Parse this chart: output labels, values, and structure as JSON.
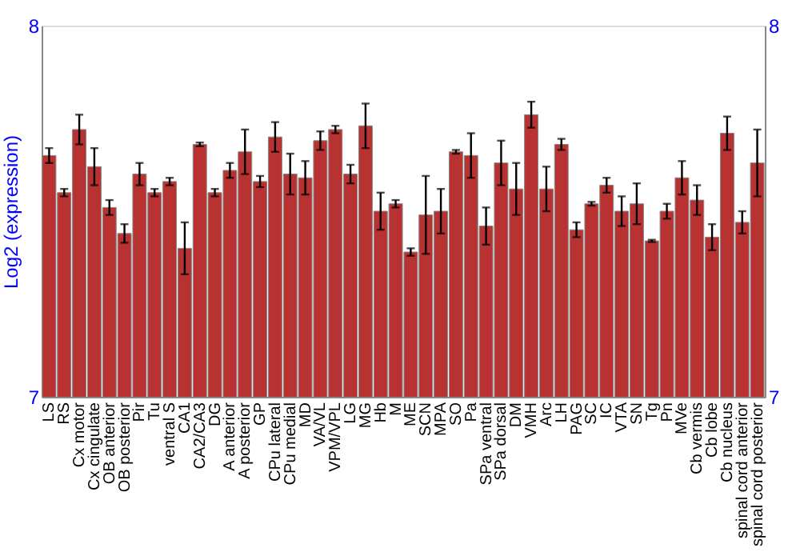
{
  "chart_data": {
    "type": "bar",
    "ylabel": "Log2 (expression)",
    "categories": [
      "LS",
      "RS",
      "Cx motor",
      "Cx cingulate",
      "OB anterior",
      "OB posterior",
      "Pir",
      "Tu",
      "ventral S",
      "CA1",
      "CA2/CA3",
      "DG",
      "A anterior",
      "A posterior",
      "GP",
      "CPu lateral",
      "CPu medial",
      "MD",
      "VA/VL",
      "VPM/VPL",
      "LG",
      "MG",
      "Hb",
      "M",
      "ME",
      "SCN",
      "MPA",
      "SO",
      "Pa",
      "SPa ventral",
      "SPa dorsal",
      "DM",
      "VMH",
      "Arc",
      "LH",
      "PAG",
      "SC",
      "IC",
      "VTA",
      "SN",
      "Tg",
      "Pn",
      "MVe",
      "Cb vermis",
      "Cb lobe",
      "Cb nucleus",
      "spinal cord anterior",
      "spinal cord posterior"
    ],
    "values": [
      7.65,
      7.55,
      7.72,
      7.62,
      7.51,
      7.44,
      7.6,
      7.55,
      7.58,
      7.4,
      7.68,
      7.55,
      7.61,
      7.66,
      7.58,
      7.7,
      7.6,
      7.59,
      7.69,
      7.72,
      7.6,
      7.73,
      7.5,
      7.52,
      7.39,
      7.49,
      7.5,
      7.66,
      7.65,
      7.46,
      7.63,
      7.56,
      7.76,
      7.56,
      7.68,
      7.45,
      7.52,
      7.57,
      7.5,
      7.52,
      7.42,
      7.5,
      7.59,
      7.53,
      7.43,
      7.71,
      7.47,
      7.63
    ],
    "errors": [
      0.02,
      0.01,
      0.04,
      0.05,
      0.02,
      0.025,
      0.03,
      0.01,
      0.01,
      0.07,
      0.005,
      0.01,
      0.02,
      0.06,
      0.015,
      0.04,
      0.055,
      0.045,
      0.025,
      0.01,
      0.025,
      0.06,
      0.05,
      0.01,
      0.01,
      0.105,
      0.06,
      0.005,
      0.06,
      0.05,
      0.06,
      0.07,
      0.035,
      0.06,
      0.015,
      0.02,
      0.005,
      0.02,
      0.04,
      0.055,
      0.003,
      0.02,
      0.045,
      0.04,
      0.035,
      0.045,
      0.03,
      0.09
    ],
    "color": "#b83232",
    "ylim": [
      7,
      8
    ],
    "yticks": [
      7,
      8
    ],
    "y2lim": [
      7,
      8
    ],
    "y2ticks": [
      7,
      8
    ],
    "grid": false
  }
}
